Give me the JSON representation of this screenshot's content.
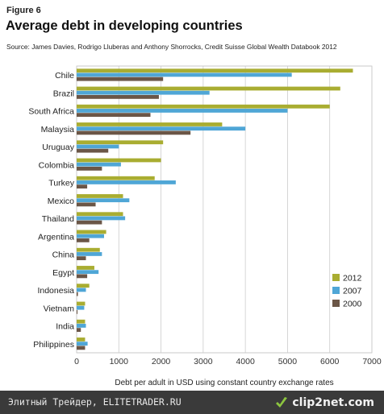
{
  "figure_label": "Figure 6",
  "title": "Average debt in developing countries",
  "source": "Source: James Davies, Rodrigo Lluberas and Anthony Shorrocks, Credit Suisse Global Wealth Databook 2012",
  "colors": {
    "2012": "#a9ad31",
    "2007": "#4fa6d6",
    "2000": "#6b5647",
    "grid": "#cccccc",
    "plot_border": "#bbbbbb"
  },
  "chart_data": {
    "type": "bar",
    "orientation": "horizontal",
    "categories": [
      "Chile",
      "Brazil",
      "South Africa",
      "Malaysia",
      "Uruguay",
      "Colombia",
      "Turkey",
      "Mexico",
      "Thailand",
      "Argentina",
      "China",
      "Egypt",
      "Indonesia",
      "Vietnam",
      "India",
      "Philippines"
    ],
    "series": [
      {
        "name": "2012",
        "values": [
          6550,
          6250,
          6000,
          3450,
          2050,
          2000,
          1850,
          1100,
          1100,
          700,
          550,
          420,
          300,
          200,
          200,
          200
        ]
      },
      {
        "name": "2007",
        "values": [
          5100,
          3150,
          5000,
          4000,
          1000,
          1050,
          2350,
          1250,
          1150,
          650,
          600,
          520,
          220,
          180,
          220,
          260
        ]
      },
      {
        "name": "2000",
        "values": [
          2050,
          1950,
          1750,
          2700,
          750,
          600,
          250,
          450,
          600,
          300,
          220,
          250,
          30,
          20,
          100,
          200
        ]
      }
    ],
    "x_ticks": [
      "0",
      "1000",
      "2000",
      "3000",
      "4000",
      "5000",
      "6000",
      "7000"
    ],
    "xlim": [
      0,
      7000
    ],
    "xlabel": "Debt per adult in USD using constant country exchange rates",
    "ylabel": "",
    "grid": "vertical",
    "legend": {
      "position": "bottom-right",
      "entries": [
        "2012",
        "2007",
        "2000"
      ]
    }
  },
  "footer": {
    "watermark": "Элитный Трейдер, ELITETRADER.RU",
    "logo": "clip2net.com"
  }
}
